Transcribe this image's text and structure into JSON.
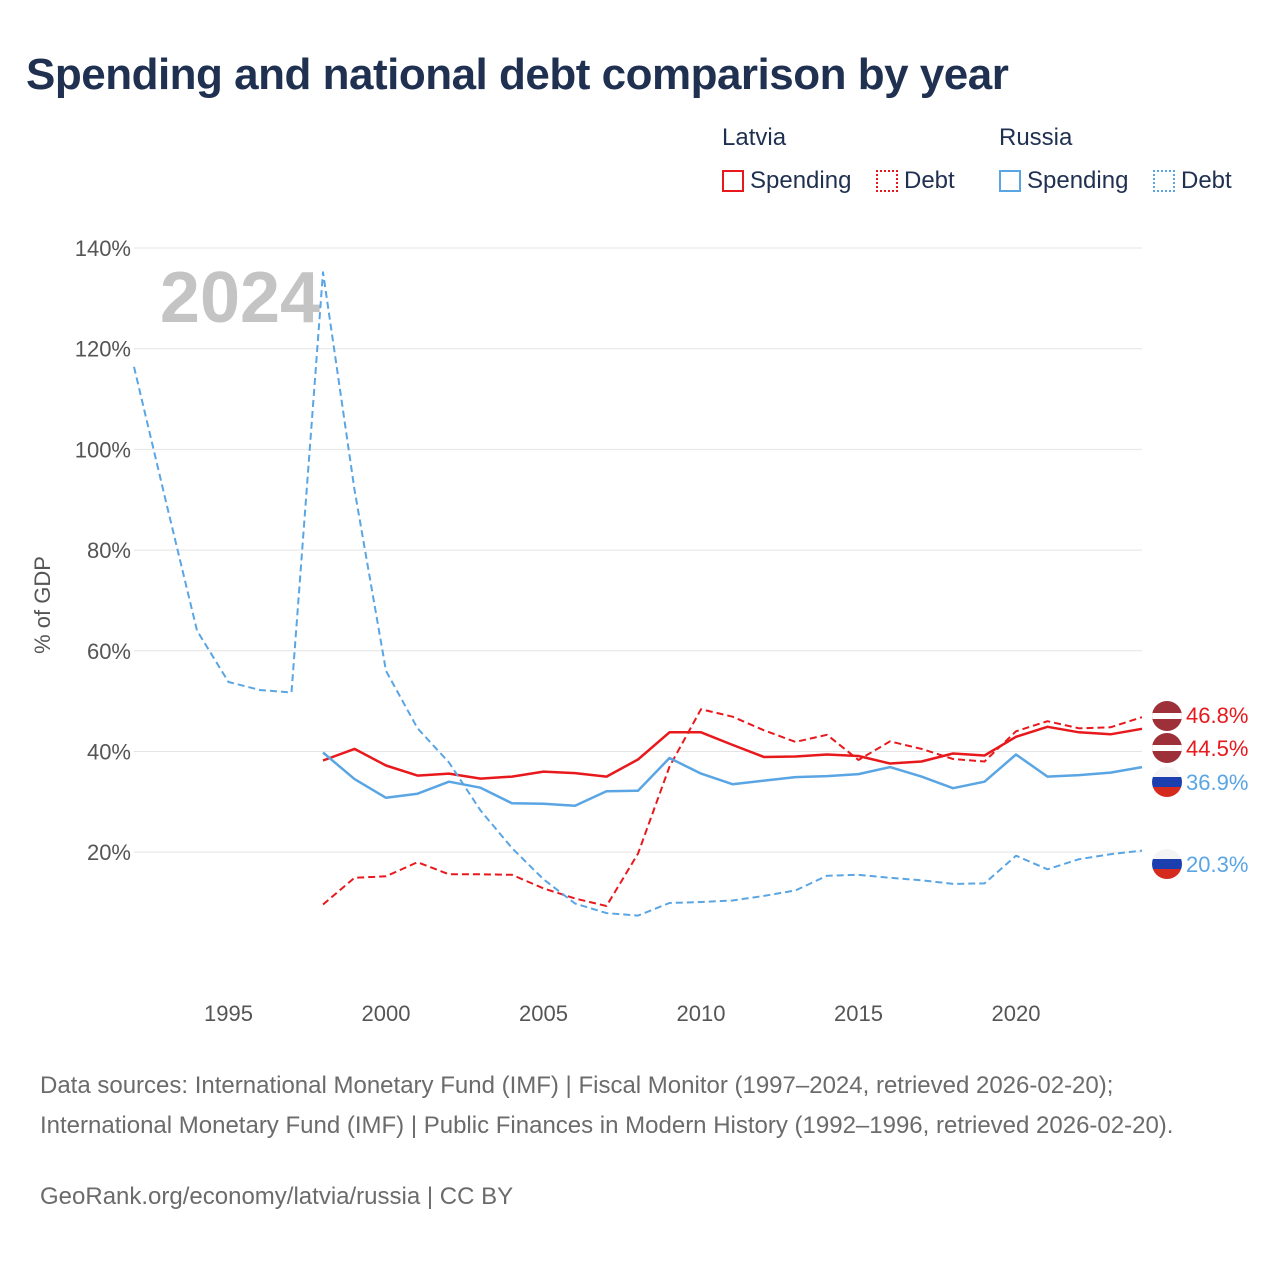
{
  "title": "Spending and national debt comparison by year",
  "legend": {
    "groups": [
      {
        "label": "Latvia",
        "items": [
          {
            "label": "Spending",
            "color": "#e8191c",
            "style": "solid"
          },
          {
            "label": "Debt",
            "color": "#e8191c",
            "style": "dotted"
          }
        ]
      },
      {
        "label": "Russia",
        "items": [
          {
            "label": "Spending",
            "color": "#5aa5e3",
            "style": "solid"
          },
          {
            "label": "Debt",
            "color": "#5aa5e3",
            "style": "dotted"
          }
        ]
      }
    ]
  },
  "chart_data": {
    "type": "line",
    "ylabel": "% of GDP",
    "xlabel": "",
    "ylim": [
      -5,
      140
    ],
    "xlim": [
      1992,
      2024
    ],
    "y_ticks": [
      {
        "value": 20,
        "label": "20%"
      },
      {
        "value": 40,
        "label": "40%"
      },
      {
        "value": 60,
        "label": "60%"
      },
      {
        "value": 80,
        "label": "80%"
      },
      {
        "value": 100,
        "label": "100%"
      },
      {
        "value": 120,
        "label": "120%"
      },
      {
        "value": 140,
        "label": "140%"
      }
    ],
    "x_ticks": [
      {
        "value": 1995,
        "label": "1995"
      },
      {
        "value": 2000,
        "label": "2000"
      },
      {
        "value": 2005,
        "label": "2005"
      },
      {
        "value": 2010,
        "label": "2010"
      },
      {
        "value": 2015,
        "label": "2015"
      },
      {
        "value": 2020,
        "label": "2020"
      }
    ],
    "year_watermark": "2024",
    "grid": true,
    "series": [
      {
        "name": "Latvia Spending",
        "country": "Latvia",
        "metric": "Spending",
        "color": "#e8191c",
        "dash": "solid",
        "end_label": "44.5%",
        "x": [
          1998,
          1999,
          2000,
          2001,
          2002,
          2003,
          2004,
          2005,
          2006,
          2007,
          2008,
          2009,
          2010,
          2011,
          2012,
          2013,
          2014,
          2015,
          2016,
          2017,
          2018,
          2019,
          2020,
          2021,
          2022,
          2023,
          2024
        ],
        "y": [
          38.2,
          40.5,
          37.2,
          35.2,
          35.6,
          34.6,
          35.0,
          36.0,
          35.7,
          35.0,
          38.4,
          43.8,
          43.8,
          41.3,
          38.9,
          39.0,
          39.4,
          39.1,
          37.6,
          38.0,
          39.6,
          39.2,
          42.9,
          44.9,
          43.8,
          43.4,
          44.5
        ]
      },
      {
        "name": "Latvia Debt",
        "country": "Latvia",
        "metric": "Debt",
        "color": "#e8191c",
        "dash": "dashed",
        "end_label": "46.8%",
        "x": [
          1998,
          1999,
          2000,
          2001,
          2002,
          2003,
          2004,
          2005,
          2006,
          2007,
          2008,
          2009,
          2010,
          2011,
          2012,
          2013,
          2014,
          2015,
          2016,
          2017,
          2018,
          2019,
          2020,
          2021,
          2022,
          2023,
          2024
        ],
        "y": [
          9.6,
          14.9,
          15.2,
          18.0,
          15.6,
          15.6,
          15.5,
          12.8,
          10.8,
          9.3,
          19.7,
          37.0,
          48.4,
          46.9,
          44.2,
          41.9,
          43.3,
          38.3,
          42.0,
          40.5,
          38.5,
          38.0,
          44.0,
          46.0,
          44.6,
          44.8,
          46.8
        ]
      },
      {
        "name": "Russia Spending",
        "country": "Russia",
        "metric": "Spending",
        "color": "#5aa5e3",
        "dash": "solid",
        "end_label": "36.9%",
        "x": [
          1998,
          1999,
          2000,
          2001,
          2002,
          2003,
          2004,
          2005,
          2006,
          2007,
          2008,
          2009,
          2010,
          2011,
          2012,
          2013,
          2014,
          2015,
          2016,
          2017,
          2018,
          2019,
          2020,
          2021,
          2022,
          2023,
          2024
        ],
        "y": [
          39.8,
          34.5,
          30.8,
          31.6,
          34.0,
          32.8,
          29.7,
          29.6,
          29.2,
          32.1,
          32.2,
          38.7,
          35.6,
          33.5,
          34.2,
          34.9,
          35.1,
          35.5,
          36.9,
          35.0,
          32.7,
          34.0,
          39.4,
          35.0,
          35.3,
          35.8,
          36.9
        ]
      },
      {
        "name": "Russia Debt",
        "country": "Russia",
        "metric": "Debt",
        "color": "#5aa5e3",
        "dash": "dashed",
        "end_label": "20.3%",
        "x": [
          1992,
          1993,
          1994,
          1995,
          1996,
          1997,
          1998,
          1999,
          2000,
          2001,
          2002,
          2003,
          2004,
          2005,
          2006,
          2007,
          2008,
          2009,
          2010,
          2011,
          2012,
          2013,
          2014,
          2015,
          2016,
          2017,
          2018,
          2019,
          2020,
          2021,
          2022,
          2023,
          2024
        ],
        "y": [
          116.4,
          90.0,
          64.0,
          53.8,
          52.2,
          51.7,
          135.2,
          92.0,
          56.0,
          44.6,
          37.8,
          28.3,
          20.8,
          14.6,
          9.8,
          7.9,
          7.4,
          9.9,
          10.1,
          10.4,
          11.3,
          12.4,
          15.3,
          15.5,
          14.9,
          14.4,
          13.7,
          13.8,
          19.3,
          16.6,
          18.6,
          19.6,
          20.3
        ]
      }
    ]
  },
  "footer": {
    "sources": "Data sources: International Monetary Fund (IMF) | Fiscal Monitor (1997–2024, retrieved 2026-02-20); International Monetary Fund (IMF) | Public Finances in Modern History (1992–1996, retrieved 2026-02-20).",
    "credit": "GeoRank.org/economy/latvia/russia | CC BY"
  }
}
